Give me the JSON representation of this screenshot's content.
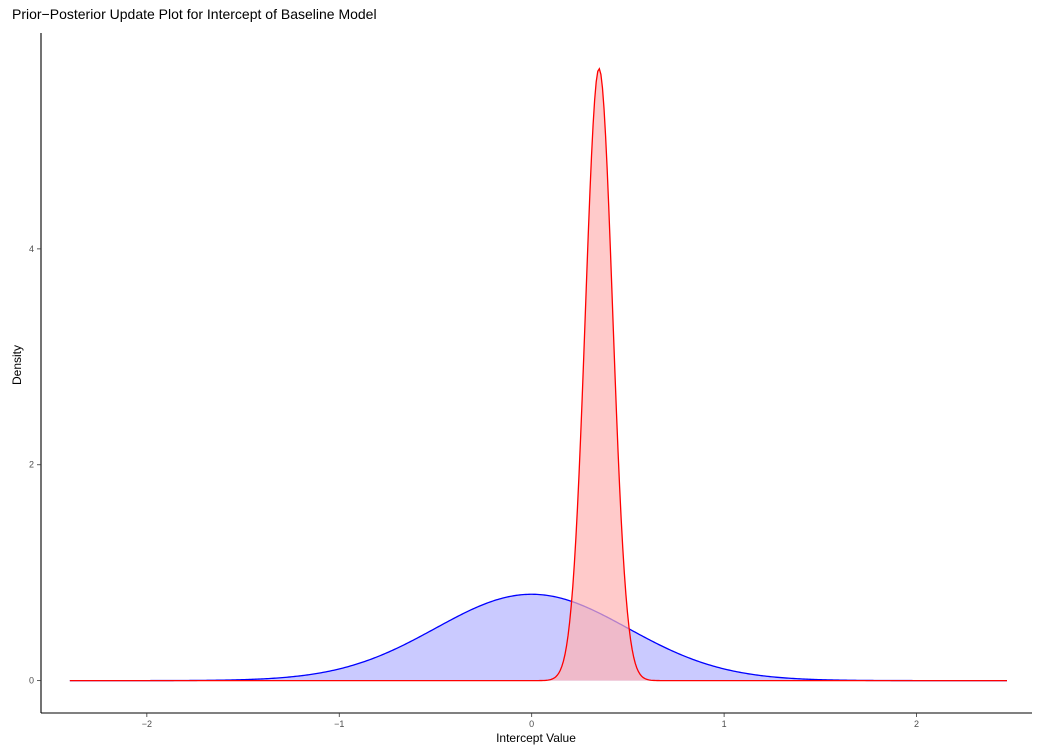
{
  "chart_data": {
    "type": "area",
    "title": "Prior−Posterior Update Plot for Intercept of Baseline Model",
    "xlabel": "Intercept Value",
    "ylabel": "Density",
    "xlim": [
      -2.55,
      2.6
    ],
    "ylim": [
      -0.3,
      6.0
    ],
    "x_ticks": [
      -2,
      -1,
      0,
      1,
      2
    ],
    "x_tick_labels": [
      "−2",
      "−1",
      "0",
      "1",
      "2"
    ],
    "y_ticks": [
      0,
      2,
      4
    ],
    "y_tick_labels": [
      "0",
      "2",
      "4"
    ],
    "grid": false,
    "legend": "none",
    "x_range": [
      -2.4,
      2.47
    ],
    "series": [
      {
        "role": "prior",
        "distribution": "normal",
        "mean": 0.0,
        "sd": 0.5,
        "peak_density": 0.8,
        "line_color": "#0000ff",
        "fill_color": "#b3b3ff"
      },
      {
        "role": "posterior",
        "distribution": "normal",
        "mean": 0.35,
        "sd": 0.0705,
        "peak_density": 5.67,
        "line_color": "#ff0000",
        "fill_color": "#ffb3b3"
      }
    ]
  }
}
